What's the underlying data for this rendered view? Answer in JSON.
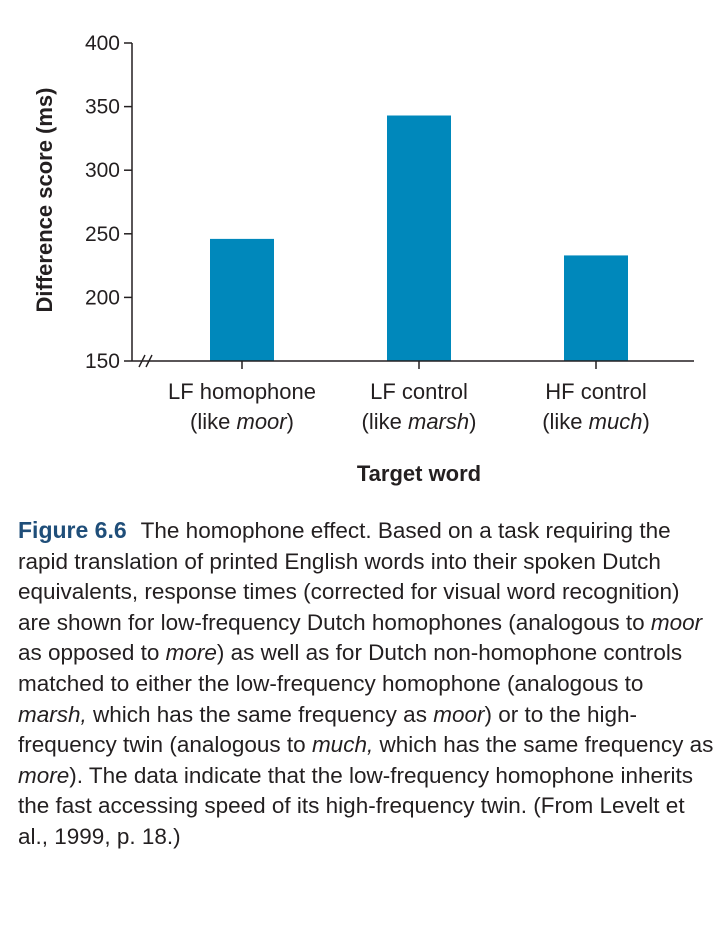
{
  "chart_data": {
    "type": "bar",
    "ylabel": "Difference score (ms)",
    "xlabel": "Target word",
    "ylim": [
      150,
      400
    ],
    "yticks": [
      150,
      200,
      250,
      300,
      350,
      400
    ],
    "axis_break": true,
    "grid": false,
    "bar_color": "#0088bb",
    "categories": [
      {
        "line1": "LF homophone",
        "line2_pre": "(like ",
        "line2_word": "moor",
        "line2_post": ")"
      },
      {
        "line1": "LF control",
        "line2_pre": "(like ",
        "line2_word": "marsh",
        "line2_post": ")"
      },
      {
        "line1": "HF control",
        "line2_pre": "(like ",
        "line2_word": "much",
        "line2_post": ")"
      }
    ],
    "values": [
      246,
      343,
      233
    ]
  },
  "caption": {
    "figure_label": "Figure 6.6",
    "s1": "The homophone effect. Based on a task requiring the rapid translation of printed English words into their spoken Dutch equivalents, response times (corrected for visual word recognition) are shown for low-frequency Dutch homophones (analogous to ",
    "i1": "moor",
    "s2": " as opposed to ",
    "i2": "more",
    "s3": ") as well as for Dutch non-homophone controls matched to either the low-frequency homophone (analogous to ",
    "i3": "marsh,",
    "s4": " which has the same frequency as ",
    "i4": "moor",
    "s5": ") or to the high-frequency twin (analogous to ",
    "i5": "much,",
    "s6": " which has the same frequency as ",
    "i6": "more",
    "s7": "). The data indicate that the low-frequency homophone inherits the fast accessing speed of its high-frequency twin. (From Levelt et al., 1999, p. 18.)"
  }
}
